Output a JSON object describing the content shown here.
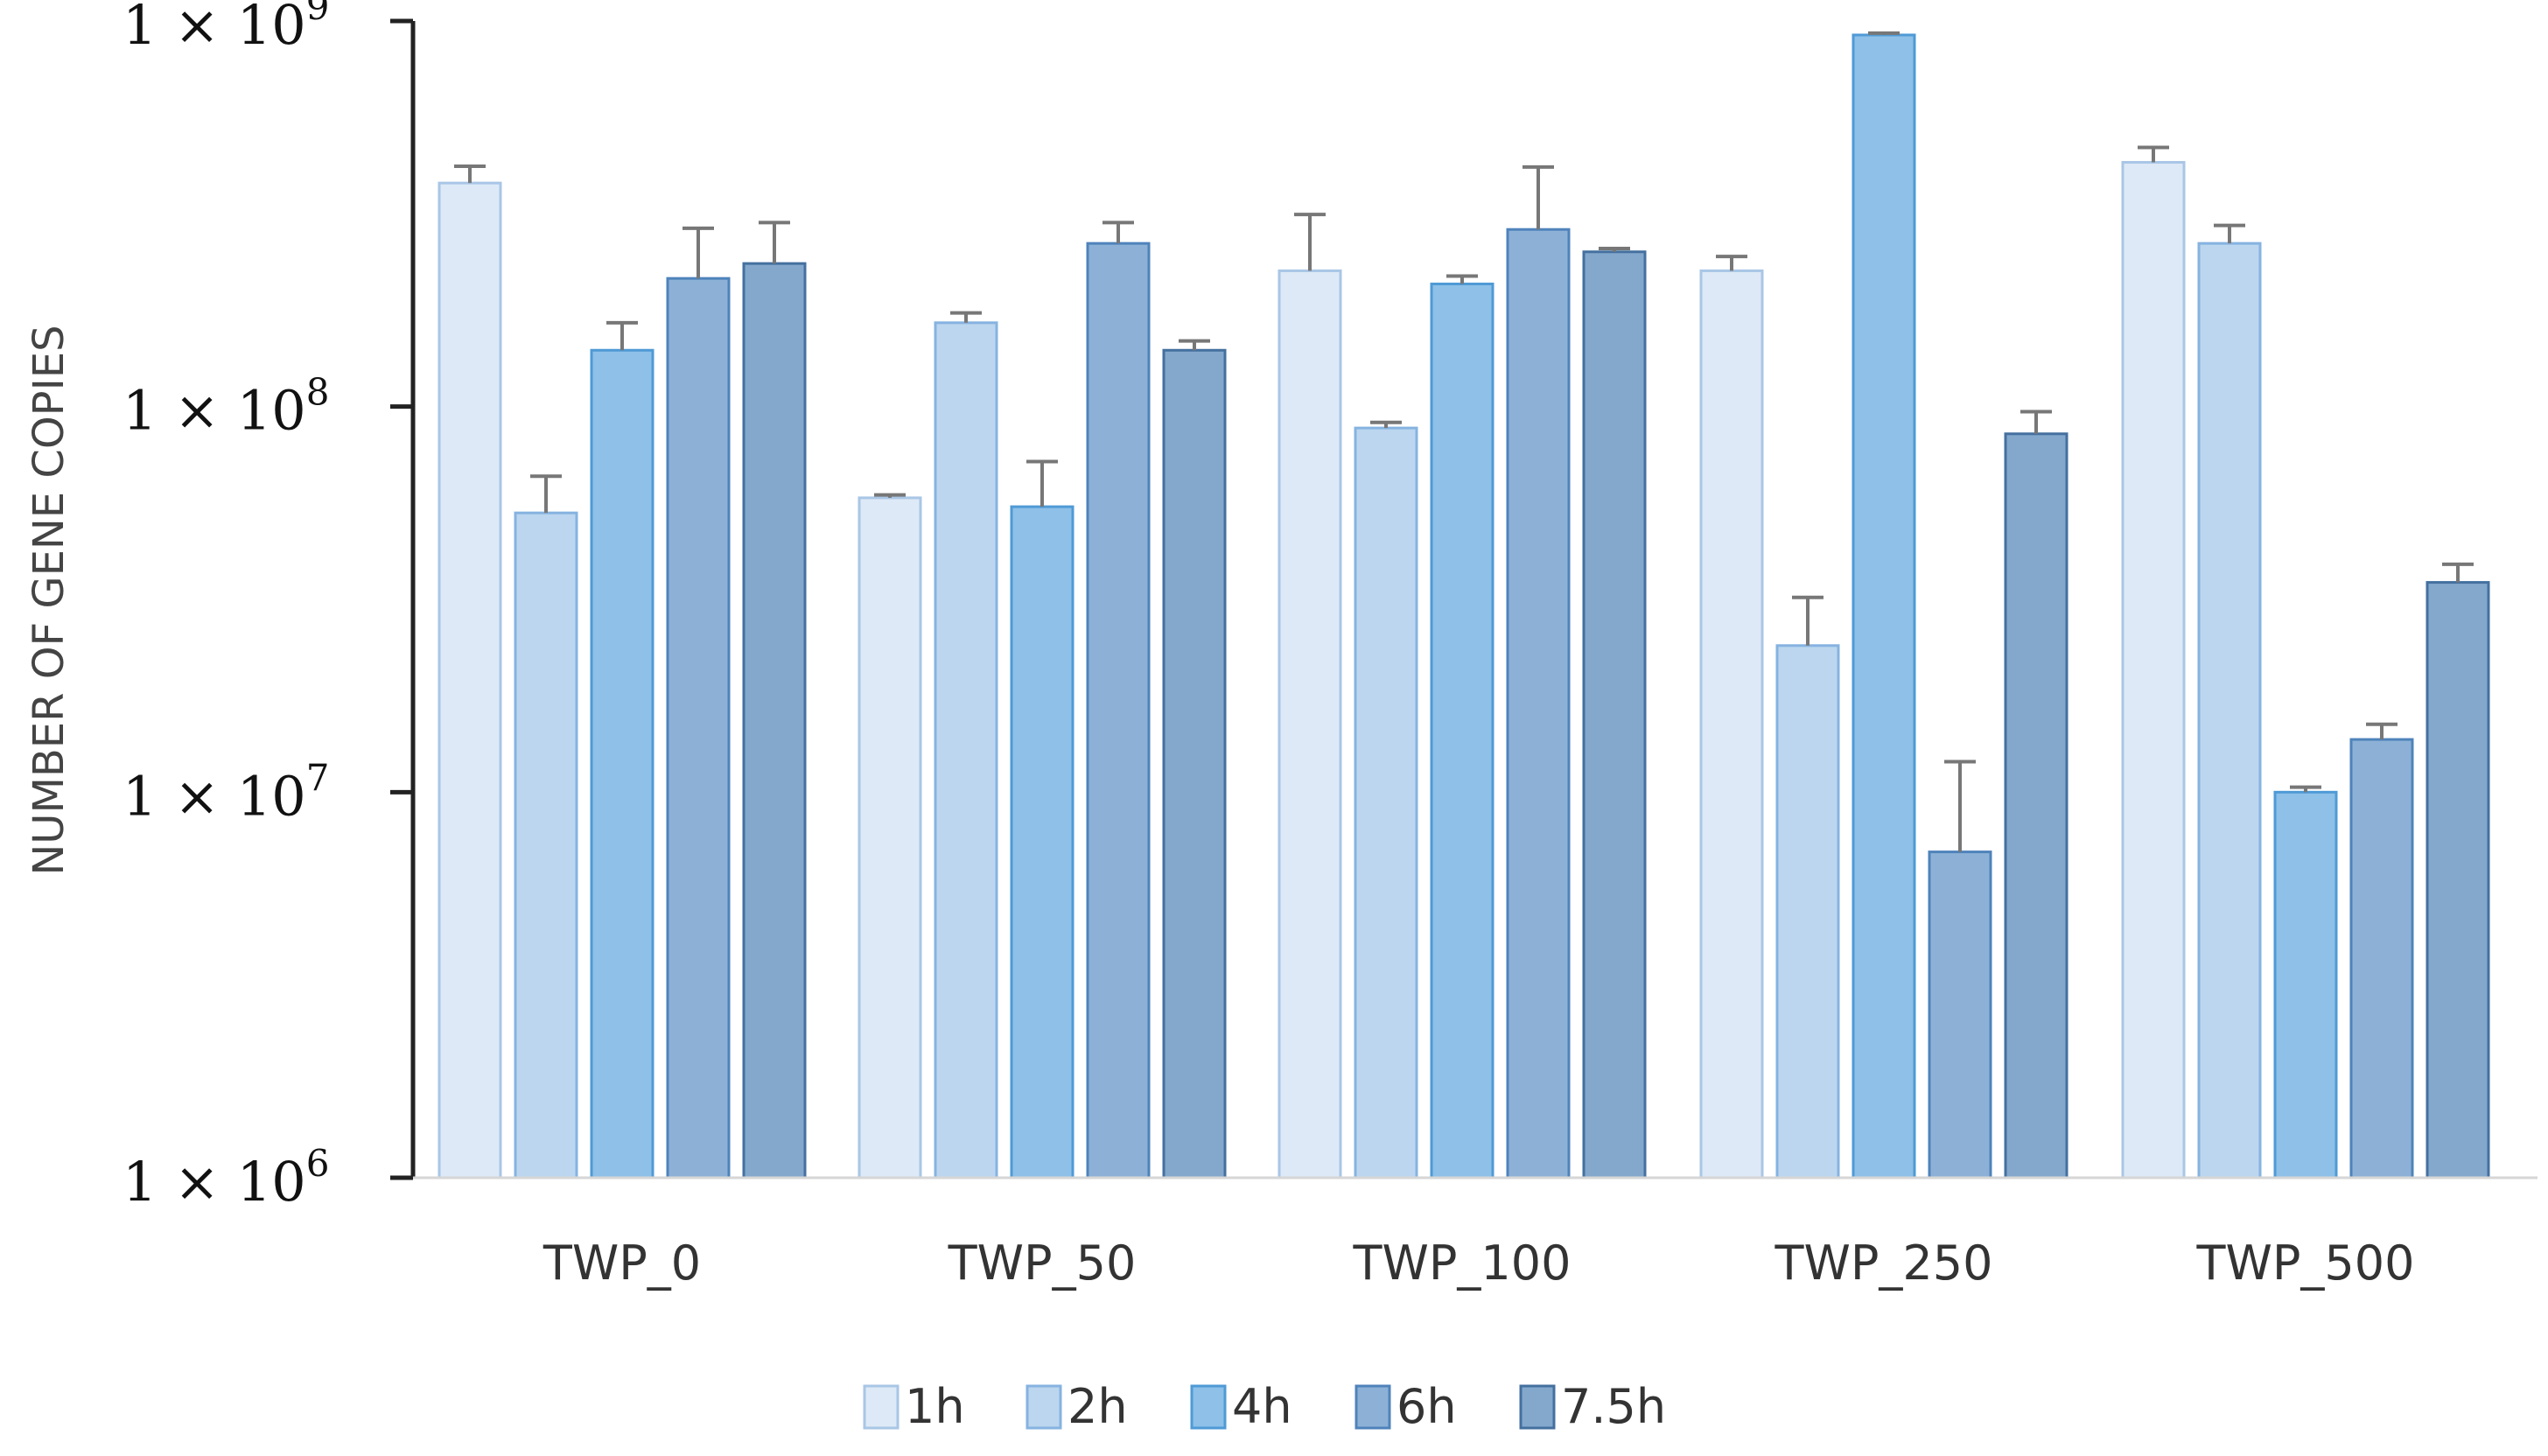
{
  "chart_data": {
    "type": "bar",
    "scale": "log",
    "title": "",
    "xlabel": "",
    "ylabel": "NUMBER OF GENE COPIES",
    "ylim": [
      1000000,
      1000000000
    ],
    "y_ticks": [
      {
        "value": 1000000000,
        "mantissa": "1 × 10",
        "exponent": "9"
      },
      {
        "value": 100000000,
        "mantissa": "1 × 10",
        "exponent": "8"
      },
      {
        "value": 10000000,
        "mantissa": "1 × 10",
        "exponent": "7"
      },
      {
        "value": 1000000,
        "mantissa": "1 × 10",
        "exponent": "6"
      }
    ],
    "categories": [
      "TWP_0",
      "TWP_50",
      "TWP_100",
      "TWP_250",
      "TWP_500"
    ],
    "legend_position": "bottom-center",
    "series": [
      {
        "name": "1h",
        "fill": "#dde9f6",
        "stroke": "#a9c6e6",
        "values": [
          380000000,
          58000000,
          225000000,
          225000000,
          430000000
        ],
        "errors": [
          40000000,
          1000000,
          90000000,
          20000000,
          40000000
        ]
      },
      {
        "name": "2h",
        "fill": "#bcd6ef",
        "stroke": "#86b3e0",
        "values": [
          53000000,
          165000000,
          88000000,
          24000000,
          265000000
        ],
        "errors": [
          13000000,
          10000000,
          3000000,
          8000000,
          30000000
        ]
      },
      {
        "name": "4h",
        "fill": "#8ec0e8",
        "stroke": "#4f9ad6",
        "values": [
          140000000,
          55000000,
          208000000,
          920000000,
          10000000
        ],
        "errors": [
          25000000,
          17000000,
          10000000,
          10000000,
          300000
        ]
      },
      {
        "name": "6h",
        "fill": "#8db1d6",
        "stroke": "#4f83bb",
        "values": [
          215000000,
          265000000,
          288000000,
          7000000,
          13700000
        ],
        "errors": [
          75000000,
          35000000,
          130000000,
          5000000,
          1300000
        ]
      },
      {
        "name": "7.5h",
        "fill": "#84a8cc",
        "stroke": "#44709f",
        "values": [
          235000000,
          140000000,
          252000000,
          85000000,
          35000000
        ],
        "errors": [
          65000000,
          8000000,
          5000000,
          12000000,
          4000000
        ]
      }
    ]
  }
}
